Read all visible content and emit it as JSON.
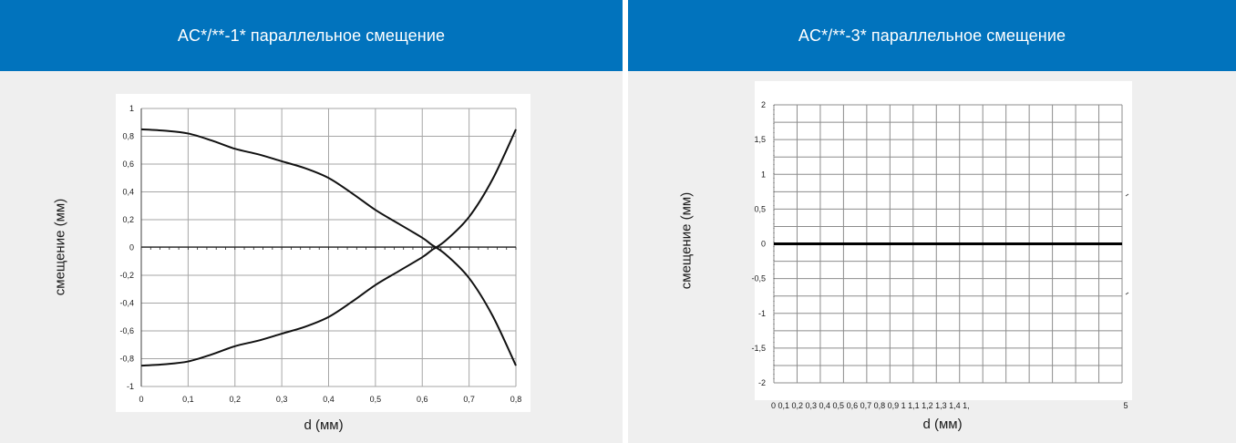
{
  "panels": [
    {
      "title": "AC*/**-1* параллельное смещение",
      "ylabel": "смещение (мм)",
      "xlabel": "d (мм)"
    },
    {
      "title": "AC*/**-3* параллельное смещение",
      "ylabel": "смещение (мм)",
      "xlabel": "d (мм)"
    }
  ],
  "chart_data": [
    {
      "type": "line",
      "title": "AC*/**-1* параллельное смещение",
      "xlabel": "d (мм)",
      "ylabel": "смещение (мм)",
      "xlim": [
        0,
        0.8
      ],
      "ylim": [
        -1,
        1
      ],
      "grid": true,
      "x_ticks": [
        "0",
        "0,1",
        "0,2",
        "0,3",
        "0,4",
        "0,5",
        "0,6",
        "0,7",
        "0,8"
      ],
      "y_ticks": [
        "1",
        "0,8",
        "0,6",
        "0,4",
        "0,2",
        "0",
        "-0,2",
        "-0,4",
        "-0,6",
        "-0,8",
        "-1"
      ],
      "series": [
        {
          "x": [
            0,
            0.05,
            0.1,
            0.15,
            0.2,
            0.25,
            0.3,
            0.35,
            0.4,
            0.45,
            0.5,
            0.55,
            0.6,
            0.62,
            0.65,
            0.7,
            0.75,
            0.8
          ],
          "y": [
            0.85,
            0.84,
            0.82,
            0.77,
            0.71,
            0.67,
            0.62,
            0.57,
            0.5,
            0.39,
            0.27,
            0.17,
            0.07,
            0.02,
            -0.05,
            -0.22,
            -0.49,
            -0.85
          ]
        },
        {
          "x": [
            0,
            0.05,
            0.1,
            0.15,
            0.2,
            0.25,
            0.3,
            0.35,
            0.4,
            0.45,
            0.5,
            0.55,
            0.6,
            0.62,
            0.65,
            0.7,
            0.75,
            0.8
          ],
          "y": [
            -0.85,
            -0.84,
            -0.82,
            -0.77,
            -0.71,
            -0.67,
            -0.62,
            -0.57,
            -0.5,
            -0.39,
            -0.27,
            -0.17,
            -0.07,
            -0.02,
            0.05,
            0.22,
            0.49,
            0.85
          ]
        }
      ]
    },
    {
      "type": "line",
      "title": "AC*/**-3* параллельное смещение",
      "xlabel": "d (мм)",
      "ylabel": "смещение (мм)",
      "xlim": [
        0,
        1.5
      ],
      "ylim": [
        -2,
        2
      ],
      "grid": true,
      "x_ticks_text": "0 0,1 0,2 0,3 0,4 0,5 0,6 0,7 0,8 0,9 1 1,1 1,2 1,3 1,4 1,",
      "x_tick_end": "5",
      "y_ticks": [
        "2",
        "1,5",
        "1",
        "0,5",
        "0",
        "-0,5",
        "-1",
        "-1,5",
        "-2"
      ],
      "series": [
        {
          "x": [
            0,
            1.5
          ],
          "y": [
            0,
            0
          ]
        }
      ]
    }
  ]
}
